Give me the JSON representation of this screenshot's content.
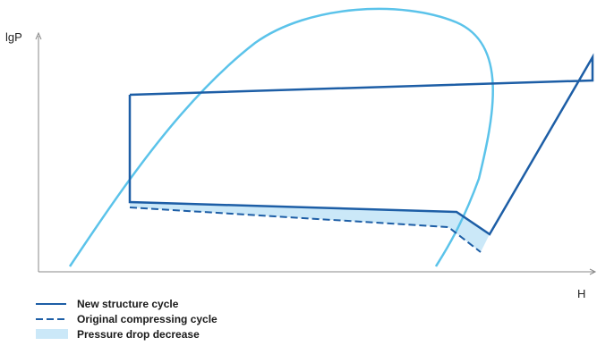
{
  "axes": {
    "y_label": "lgP",
    "x_label": "H"
  },
  "legend": [
    {
      "label": "New structure cycle",
      "style": "solid"
    },
    {
      "label": "Original compressing cycle",
      "style": "dashed"
    },
    {
      "label": "Pressure drop decrease",
      "style": "area"
    }
  ],
  "colors": {
    "cycle_line": "#1d5ea6",
    "saturation_dome": "#5bc3ea",
    "pressure_drop_fill": "#cbe8f8",
    "axis": "#888888"
  }
}
